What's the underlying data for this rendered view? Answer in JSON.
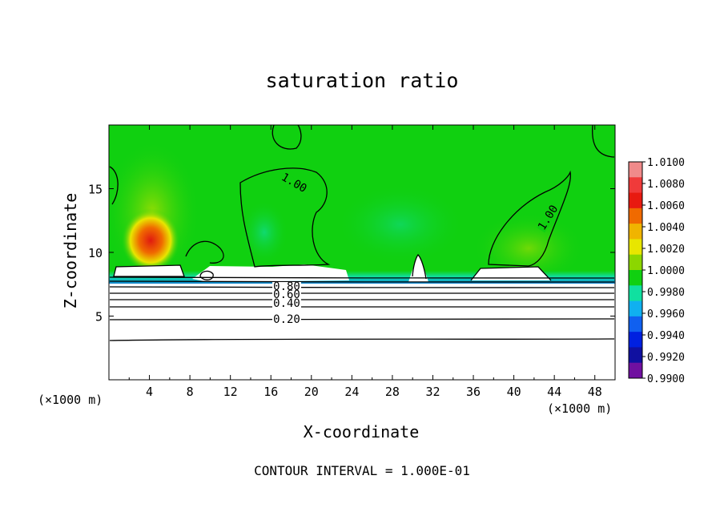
{
  "chart_data": {
    "type": "heatmap",
    "title": "saturation ratio",
    "xlabel": "X-coordinate",
    "ylabel": "Z-coordinate",
    "x_unit": "(×1000 m)",
    "xlim": [
      0,
      50
    ],
    "ylim": [
      0,
      20
    ],
    "x_ticks": [
      "4",
      "8",
      "12",
      "16",
      "20",
      "24",
      "28",
      "32",
      "36",
      "40",
      "44",
      "48"
    ],
    "y_ticks": [
      "5",
      "10",
      "15"
    ],
    "colorbar": {
      "range": [
        0.99,
        1.01
      ],
      "labels": [
        "1.0100",
        "1.0080",
        "1.0060",
        "1.0040",
        "1.0020",
        "1.0000",
        "0.9980",
        "0.9960",
        "0.9940",
        "0.9920",
        "0.9900"
      ],
      "colors": [
        "#f08a8a",
        "#f03a3a",
        "#e81a10",
        "#f06a00",
        "#f0b400",
        "#e8e600",
        "#8cd600",
        "#10d010",
        "#10e0a0",
        "#10b0f0",
        "#1060f0",
        "#0020e0",
        "#1010a0",
        "#7010a0"
      ]
    },
    "contour_labels": [
      "1.00",
      "1.00",
      "0.80",
      "0.60",
      "0.40",
      "0.20"
    ],
    "contour_interval_text": "CONTOUR INTERVAL = 1.000E-01",
    "grid": false
  }
}
